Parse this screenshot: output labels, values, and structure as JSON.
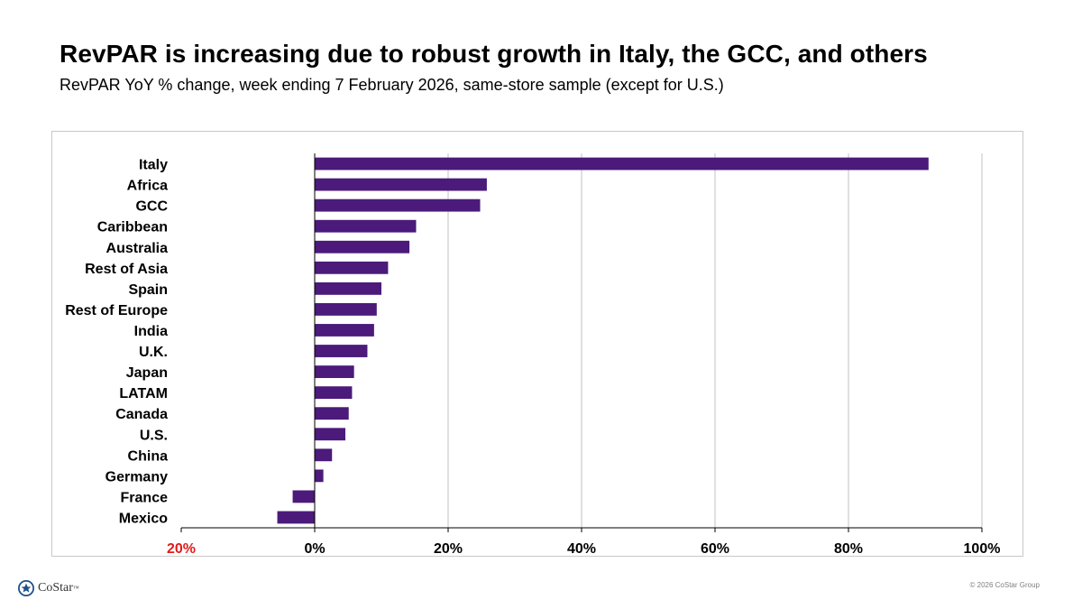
{
  "header": {
    "title": "RevPAR is increasing due to robust growth in Italy, the GCC, and others",
    "subtitle": "RevPAR YoY % change, week ending 7 February 2026, same-store sample (except for U.S.)"
  },
  "chart_data": {
    "type": "bar",
    "orientation": "horizontal",
    "title": "RevPAR YoY % change",
    "xlabel": "",
    "ylabel": "",
    "categories": [
      "Italy",
      "Africa",
      "GCC",
      "Caribbean",
      "Australia",
      "Rest of Asia",
      "Spain",
      "Rest of Europe",
      "India",
      "U.K.",
      "Japan",
      "LATAM",
      "Canada",
      "U.S.",
      "China",
      "Germany",
      "France",
      "Mexico"
    ],
    "values": [
      92.0,
      25.8,
      24.8,
      15.2,
      14.2,
      11.0,
      10.0,
      9.3,
      8.9,
      7.9,
      5.9,
      5.6,
      5.1,
      4.6,
      2.6,
      1.3,
      -3.3,
      -5.6
    ],
    "xlim": [
      -20,
      100
    ],
    "ticks": [
      -20,
      0,
      20,
      40,
      60,
      80,
      100
    ],
    "tick_labels": [
      "20%",
      "0%",
      "20%",
      "40%",
      "60%",
      "80%",
      "100%"
    ],
    "grid": true,
    "bar_color": "#4b1a7a",
    "negative_tick_color": "#e21a1a"
  },
  "footer": {
    "brand": "CoStar",
    "trademark": "™",
    "copyright": "© 2026 CoStar Group"
  },
  "colors": {
    "brand_blue": "#1f4e8c",
    "gridline": "#c0c0c0"
  }
}
